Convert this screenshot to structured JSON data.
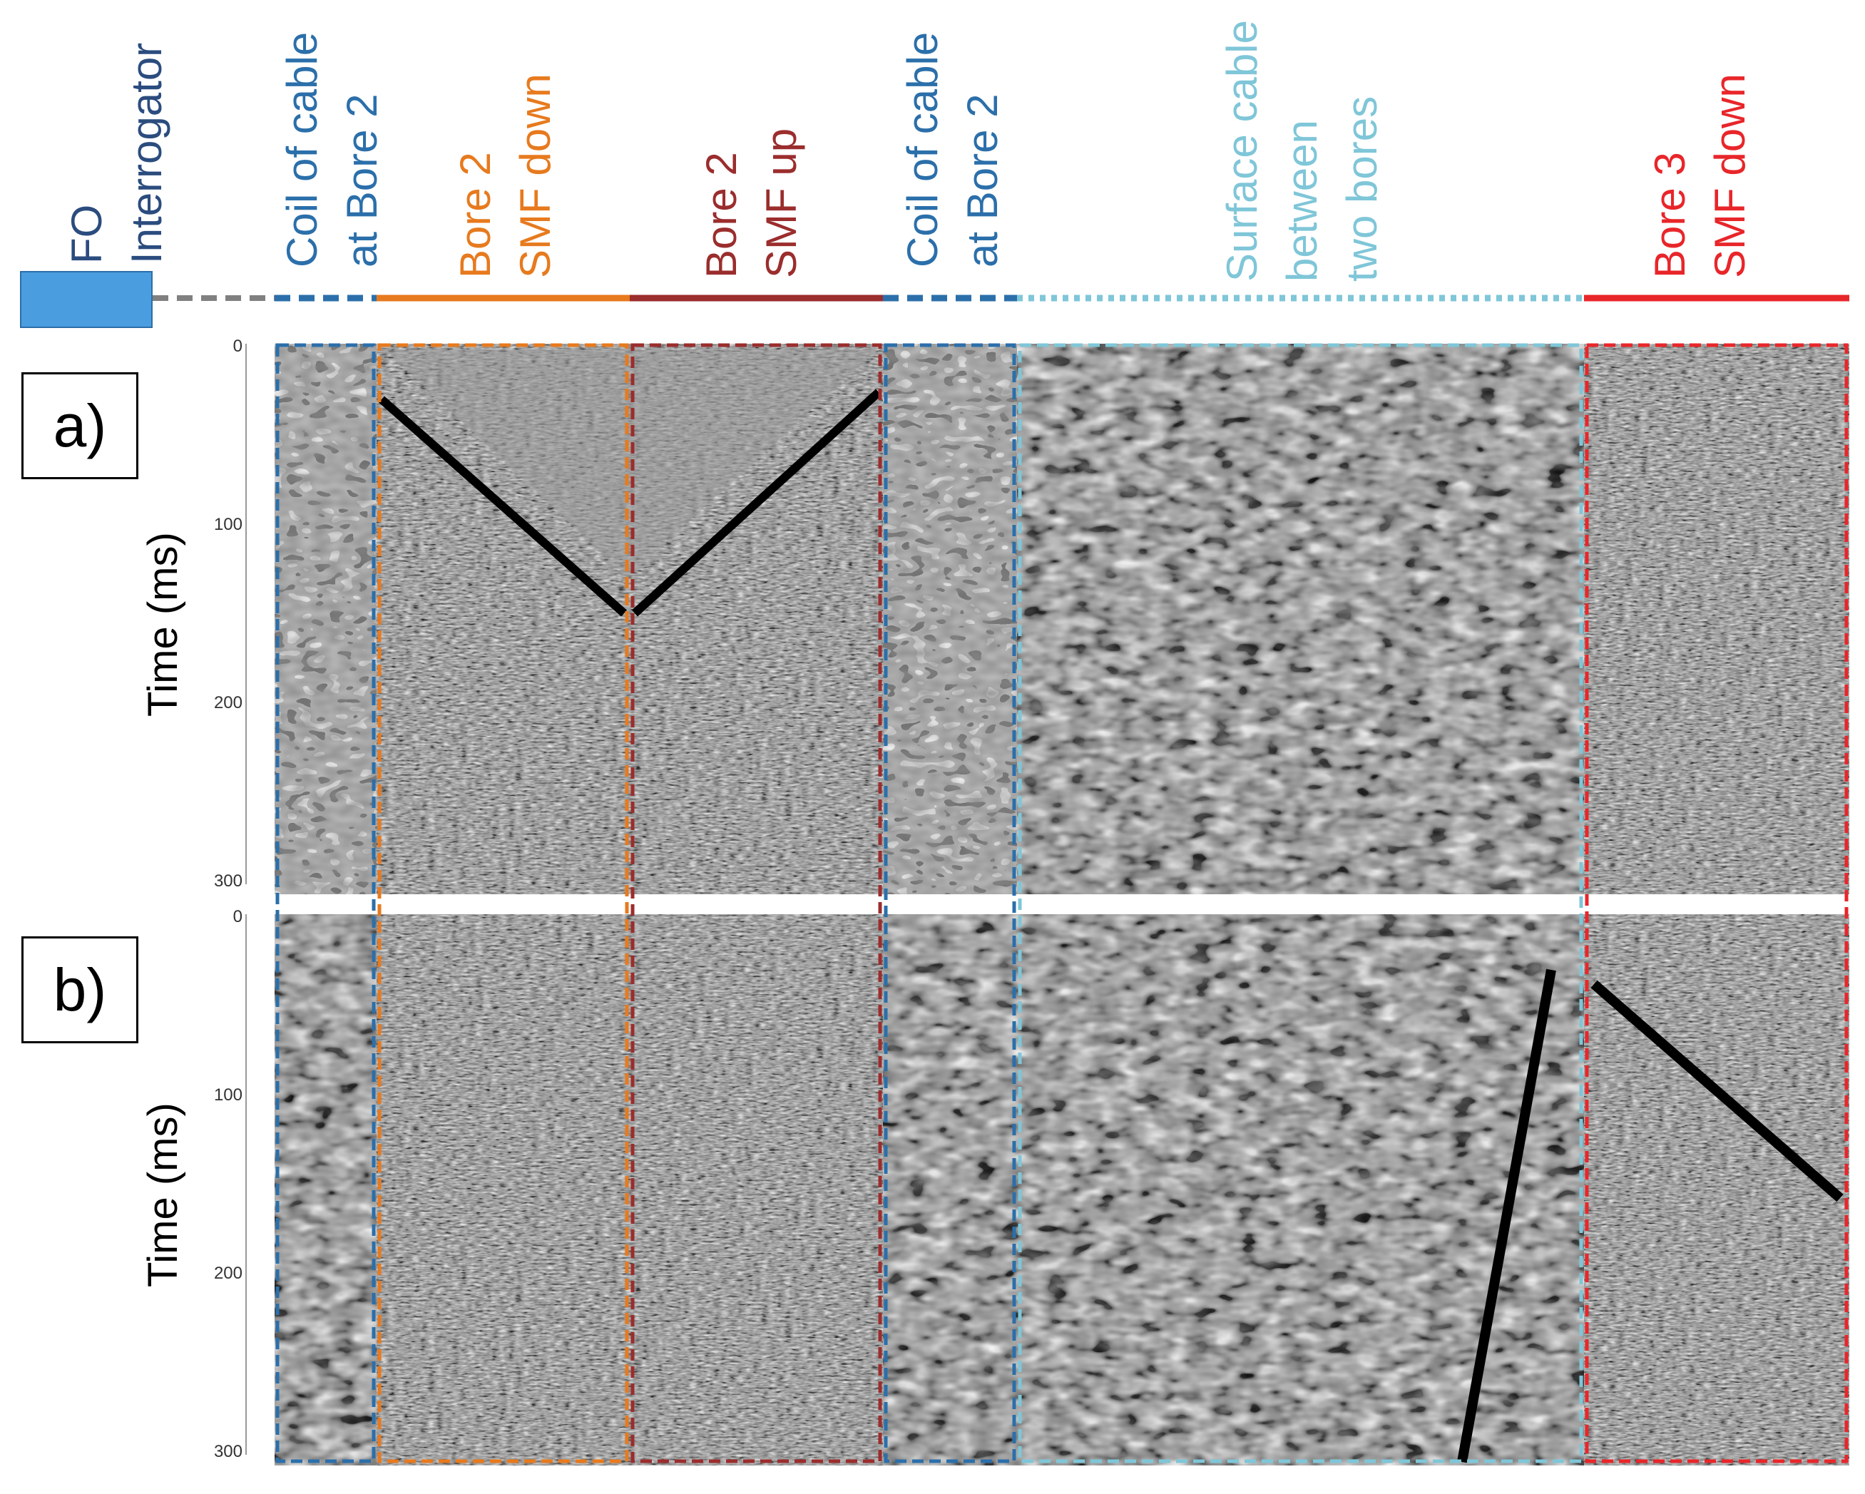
{
  "interrogator": {
    "label_lines": [
      "FO",
      "Interrogator"
    ],
    "colors": {
      "box": "#4a9ee0",
      "text": "#2b4c7e"
    }
  },
  "sections": [
    {
      "id": "coil-1",
      "lines": [
        "Coil of cable",
        "at Bore 2"
      ],
      "color": "#2b6faa",
      "line_style": "dashed"
    },
    {
      "id": "bore2-down",
      "lines": [
        "Bore 2",
        "SMF down"
      ],
      "color": "#e77a1e",
      "line_style": "solid"
    },
    {
      "id": "bore2-up",
      "lines": [
        "Bore 2",
        "SMF up"
      ],
      "color": "#9b2d2d",
      "line_style": "solid"
    },
    {
      "id": "coil-2",
      "lines": [
        "Coil of cable",
        "at Bore 2"
      ],
      "color": "#2b6faa",
      "line_style": "dashed"
    },
    {
      "id": "surface",
      "lines": [
        "Surface cable",
        "between",
        "two bores"
      ],
      "color": "#7fc6d8",
      "line_style": "dotted"
    },
    {
      "id": "bore3-down",
      "lines": [
        "Bore 3",
        "SMF down"
      ],
      "color": "#e8262a",
      "line_style": "solid"
    }
  ],
  "panels": [
    {
      "label": "a)",
      "y_title": "Time (ms)",
      "y_ticks": [
        "0",
        "100",
        "200",
        "300"
      ]
    },
    {
      "label": "b)",
      "y_title": "Time (ms)",
      "y_ticks": [
        "0",
        "100",
        "200",
        "300"
      ]
    }
  ]
}
